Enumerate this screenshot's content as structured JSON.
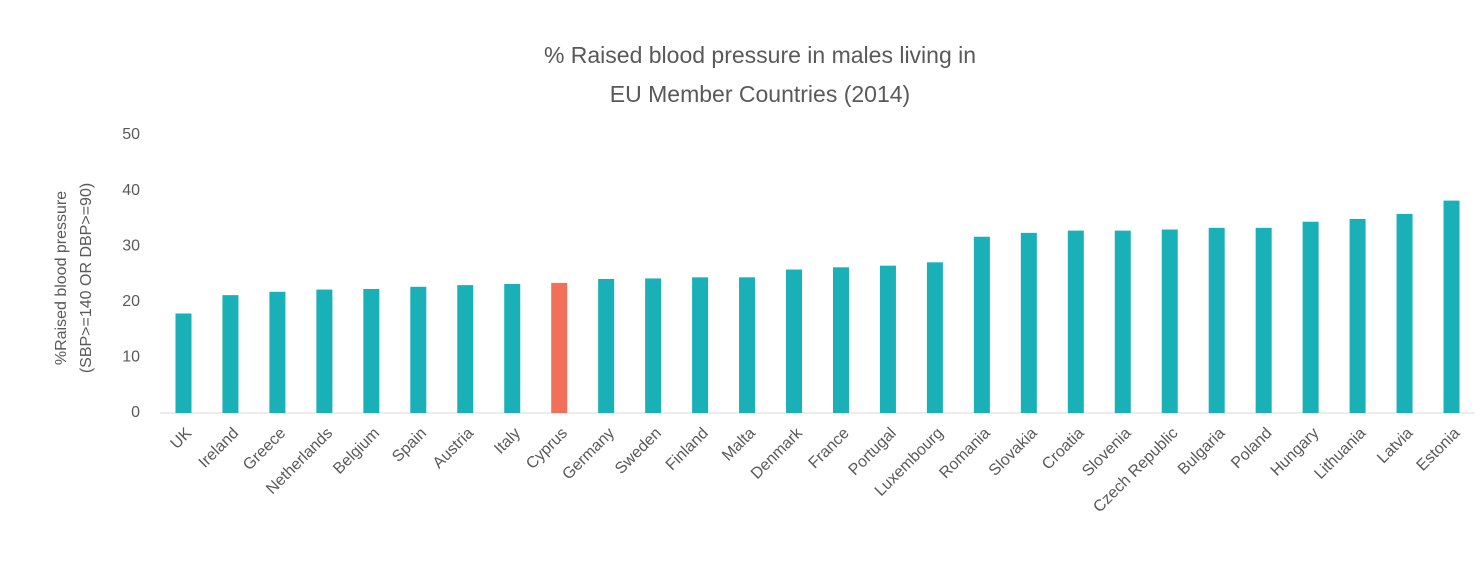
{
  "chart_data": {
    "type": "bar",
    "title": [
      "% Raised blood pressure in males living in",
      "EU Member Countries (2014)"
    ],
    "y_label": [
      "%Raised blood pressure",
      "(SBP>=140 OR DBP>=90)"
    ],
    "categories": [
      "UK",
      "Ireland",
      "Greece",
      "Netherlands",
      "Belgium",
      "Spain",
      "Austria",
      "Italy",
      "Cyprus",
      "Germany",
      "Sweden",
      "Finland",
      "Malta",
      "Denmark",
      "France",
      "Portugal",
      "Luxembourg",
      "Romania",
      "Slovakia",
      "Croatia",
      "Slovenia",
      "Czech Republic",
      "Bulgaria",
      "Poland",
      "Hungary",
      "Lithuania",
      "Latvia",
      "Estonia"
    ],
    "values": [
      17.9,
      21.2,
      21.8,
      22.2,
      22.3,
      22.7,
      23.0,
      23.2,
      23.4,
      24.1,
      24.2,
      24.4,
      24.4,
      25.8,
      26.2,
      26.5,
      27.1,
      31.7,
      32.4,
      32.8,
      32.8,
      33.0,
      33.3,
      33.3,
      34.4,
      34.9,
      35.8,
      38.2
    ],
    "colors": [
      "#1ab0b8",
      "#1ab0b8",
      "#1ab0b8",
      "#1ab0b8",
      "#1ab0b8",
      "#1ab0b8",
      "#1ab0b8",
      "#1ab0b8",
      "#f0705a",
      "#1ab0b8",
      "#1ab0b8",
      "#1ab0b8",
      "#1ab0b8",
      "#1ab0b8",
      "#1ab0b8",
      "#1ab0b8",
      "#1ab0b8",
      "#1ab0b8",
      "#1ab0b8",
      "#1ab0b8",
      "#1ab0b8",
      "#1ab0b8",
      "#1ab0b8",
      "#1ab0b8",
      "#1ab0b8",
      "#1ab0b8",
      "#1ab0b8",
      "#1ab0b8"
    ],
    "ylim": [
      0,
      50
    ],
    "yticks": [
      0,
      10,
      20,
      30,
      40,
      50
    ],
    "grid": false
  }
}
